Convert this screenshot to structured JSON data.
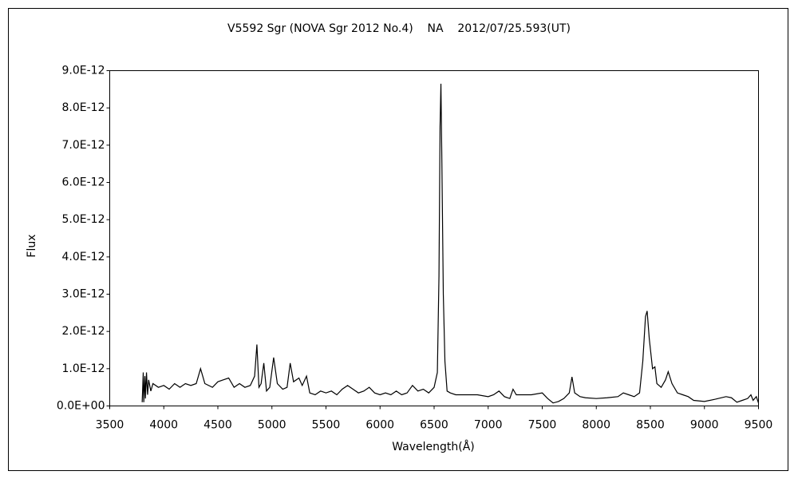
{
  "chart_data": {
    "type": "line",
    "title": "V5592 Sgr (NOVA Sgr 2012 No.4)    NA    2012/07/25.593(UT)",
    "x_label": "Wavelength(Å)",
    "y_label": "Flux",
    "xlim": [
      3500,
      9500
    ],
    "xticks": [
      3500,
      4000,
      4500,
      5000,
      5500,
      6000,
      6500,
      7000,
      7500,
      8000,
      8500,
      9000,
      9500
    ],
    "ylim": [
      0,
      9e-12
    ],
    "yticks": [
      {
        "value": 0,
        "label": "0.0E+00"
      },
      {
        "value": 1e-12,
        "label": "1.0E-12"
      },
      {
        "value": 2e-12,
        "label": "2.0E-12"
      },
      {
        "value": 3e-12,
        "label": "3.0E-12"
      },
      {
        "value": 4e-12,
        "label": "4.0E-12"
      },
      {
        "value": 5e-12,
        "label": "5.0E-12"
      },
      {
        "value": 6e-12,
        "label": "6.0E-12"
      },
      {
        "value": 7e-12,
        "label": "7.0E-12"
      },
      {
        "value": 8e-12,
        "label": "8.0E-12"
      },
      {
        "value": 9e-12,
        "label": "9.0E-12"
      }
    ],
    "color": "#000000",
    "x": [
      3800,
      3810,
      3815,
      3825,
      3830,
      3840,
      3850,
      3860,
      3880,
      3900,
      3950,
      4000,
      4050,
      4100,
      4150,
      4200,
      4250,
      4300,
      4340,
      4380,
      4450,
      4500,
      4550,
      4600,
      4650,
      4700,
      4750,
      4800,
      4840,
      4861,
      4880,
      4900,
      4925,
      4950,
      4980,
      5016,
      5050,
      5100,
      5140,
      5169,
      5200,
      5250,
      5280,
      5320,
      5350,
      5400,
      5450,
      5500,
      5550,
      5600,
      5650,
      5700,
      5750,
      5800,
      5850,
      5900,
      5950,
      6000,
      6050,
      6100,
      6150,
      6200,
      6250,
      6300,
      6350,
      6400,
      6450,
      6500,
      6530,
      6545,
      6555,
      6563,
      6572,
      6585,
      6600,
      6620,
      6650,
      6700,
      6800,
      6900,
      7000,
      7050,
      7100,
      7150,
      7200,
      7230,
      7260,
      7300,
      7400,
      7500,
      7550,
      7600,
      7650,
      7700,
      7750,
      7775,
      7800,
      7850,
      7900,
      8000,
      8100,
      8200,
      8250,
      8300,
      8350,
      8400,
      8430,
      8455,
      8470,
      8490,
      8520,
      8542,
      8560,
      8600,
      8640,
      8665,
      8700,
      8750,
      8800,
      8850,
      8900,
      9000,
      9100,
      9200,
      9250,
      9300,
      9350,
      9400,
      9430,
      9450,
      9480,
      9500
    ],
    "y": [
      1e-13,
      9e-13,
      1e-13,
      8e-13,
      2e-13,
      9e-13,
      3e-13,
      7e-13,
      4e-13,
      6e-13,
      5e-13,
      5.5e-13,
      4.5e-13,
      6e-13,
      5e-13,
      6e-13,
      5.5e-13,
      6e-13,
      1e-12,
      6e-13,
      5e-13,
      6.5e-13,
      7e-13,
      7.5e-13,
      5e-13,
      6e-13,
      5e-13,
      5.5e-13,
      8e-13,
      1.65e-12,
      5e-13,
      6e-13,
      1.15e-12,
      4e-13,
      5e-13,
      1.3e-12,
      6e-13,
      4.5e-13,
      5e-13,
      1.15e-12,
      6.5e-13,
      7.5e-13,
      5.5e-13,
      8e-13,
      3.5e-13,
      3e-13,
      4e-13,
      3.5e-13,
      4e-13,
      3e-13,
      4.5e-13,
      5.5e-13,
      4.5e-13,
      3.5e-13,
      4e-13,
      5e-13,
      3.5e-13,
      3e-13,
      3.5e-13,
      3e-13,
      4e-13,
      3e-13,
      3.5e-13,
      5.5e-13,
      4e-13,
      4.5e-13,
      3.5e-13,
      5e-13,
      9e-13,
      3.5e-12,
      7.5e-12,
      8.65e-12,
      6.5e-12,
      3e-12,
      1.2e-12,
      4e-13,
      3.5e-13,
      3e-13,
      3e-13,
      3e-13,
      2.5e-13,
      3e-13,
      4e-13,
      2.5e-13,
      2e-13,
      4.5e-13,
      3e-13,
      3e-13,
      3e-13,
      3.5e-13,
      2e-13,
      8e-14,
      1.2e-13,
      2e-13,
      3.5e-13,
      7.8e-13,
      3.5e-13,
      2.5e-13,
      2.2e-13,
      2e-13,
      2.2e-13,
      2.5e-13,
      3.5e-13,
      3e-13,
      2.5e-13,
      3.5e-13,
      1.2e-12,
      2.4e-12,
      2.55e-12,
      1.8e-12,
      1e-12,
      1.05e-12,
      6e-13,
      5e-13,
      7e-13,
      9.2e-13,
      6e-13,
      3.5e-13,
      3e-13,
      2.5e-13,
      1.5e-13,
      1.2e-13,
      1.8e-13,
      2.5e-13,
      2.2e-13,
      1e-13,
      1.5e-13,
      2e-13,
      3e-13,
      1.5e-13,
      2.5e-13,
      8e-14
    ]
  }
}
